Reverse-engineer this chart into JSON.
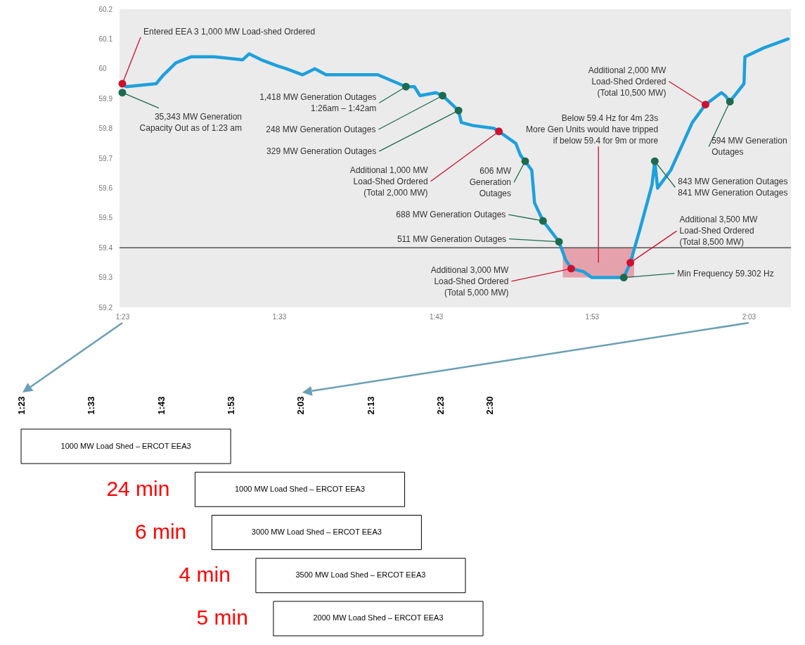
{
  "chart_data": [
    {
      "type": "line",
      "xlim": [
        1.38,
        2.095
      ],
      "ylim": [
        59.2,
        60.2
      ],
      "xticks": [
        {
          "value": 1.383,
          "label": "1:23"
        },
        {
          "value": 1.55,
          "label": "1:33"
        },
        {
          "value": 1.717,
          "label": "1:43"
        },
        {
          "value": 1.883,
          "label": "1:53"
        },
        {
          "value": 2.05,
          "label": "2:03"
        }
      ],
      "yticks": [
        59.2,
        59.3,
        59.4,
        59.5,
        59.6,
        59.7,
        59.8,
        59.9,
        60,
        60.1,
        60.2
      ],
      "grid": false,
      "series": [
        {
          "type": "line",
          "color": "#1ea0db",
          "x": [
            1.383,
            1.387,
            1.419,
            1.427,
            1.44,
            1.456,
            1.481,
            1.511,
            1.518,
            1.531,
            1.548,
            1.558,
            1.575,
            1.588,
            1.6,
            1.625,
            1.655,
            1.685,
            1.694,
            1.7,
            1.717,
            1.724,
            1.741,
            1.744,
            1.756,
            1.779,
            1.784,
            1.802,
            1.807,
            1.812,
            1.819,
            1.822,
            1.831,
            1.848,
            1.855,
            1.861,
            1.874,
            1.883,
            1.911,
            1.917,
            1.924,
            1.934,
            1.947,
            1.95,
            1.953,
            1.967,
            1.99,
            2.004,
            2.021,
            2.025,
            2.03,
            2.045,
            2.046,
            2.066,
            2.092
          ],
          "values": [
            59.95,
            59.94,
            59.95,
            59.98,
            60.02,
            60.04,
            60.04,
            60.03,
            60.05,
            60.03,
            60.01,
            60.0,
            59.98,
            60.0,
            59.98,
            59.98,
            59.98,
            59.94,
            59.94,
            59.91,
            59.92,
            59.91,
            59.86,
            59.82,
            59.81,
            59.8,
            59.79,
            59.75,
            59.71,
            59.69,
            59.66,
            59.55,
            59.49,
            59.42,
            59.36,
            59.33,
            59.32,
            59.3,
            59.3,
            59.3,
            59.35,
            59.46,
            59.61,
            59.69,
            59.6,
            59.66,
            59.82,
            59.88,
            59.92,
            59.91,
            59.89,
            59.95,
            60.04,
            60.07,
            60.1
          ]
        },
        {
          "type": "scatter",
          "color": "#cc1030",
          "x": [
            1.383,
            1.784,
            1.861,
            1.924,
            2.004
          ],
          "values": [
            59.95,
            59.79,
            59.33,
            59.35,
            59.88
          ]
        },
        {
          "type": "scatter",
          "color": "#1d6b4f",
          "x": [
            1.383,
            1.685,
            1.724,
            1.741,
            1.812,
            1.831,
            1.848,
            1.917,
            1.95,
            2.03
          ],
          "values": [
            59.92,
            59.94,
            59.91,
            59.86,
            59.69,
            59.49,
            59.42,
            59.3,
            59.69,
            59.89
          ]
        }
      ],
      "ref_lines": [
        {
          "axis": "y",
          "value": 59.4,
          "color": "#555555"
        }
      ],
      "bands": [
        {
          "axis": "x",
          "from": 1.852,
          "to": 1.928,
          "label": "Below 59.4 Hz for 4m 23s\nMore Gen Units would have tripped\nif below 59.4 for 9m or more",
          "color": "#e59aa5"
        }
      ],
      "annotations": [
        {
          "text": "Entered EEA 3 1,000 MW Load-shed Ordered",
          "x": 1.383,
          "y": 59.95
        },
        {
          "text": "35,343 MW Generation\nCapacity Out as of 1:23 am",
          "x": 1.383,
          "y": 59.92
        },
        {
          "text": "1,418 MW Generation Outages\n1:26am – 1:42am",
          "x": 1.685,
          "y": 59.94
        },
        {
          "text": "248 MW Generation Outages",
          "x": 1.724,
          "y": 59.91
        },
        {
          "text": "329 MW Generation Outages",
          "x": 1.741,
          "y": 59.86
        },
        {
          "text": "Additional 1,000 MW\nLoad-Shed Ordered\n(Total 2,000 MW)",
          "x": 1.784,
          "y": 59.79
        },
        {
          "text": "606 MW\nGeneration\nOutages",
          "x": 1.812,
          "y": 59.69
        },
        {
          "text": "688 MW Generation Outages",
          "x": 1.831,
          "y": 59.49
        },
        {
          "text": "511 MW Generation Outages",
          "x": 1.848,
          "y": 59.42
        },
        {
          "text": "Additional 3,000 MW\nLoad-Shed Ordered\n(Total 5,000 MW)",
          "x": 1.861,
          "y": 59.33
        },
        {
          "text": "Min Frequency 59.302 Hz",
          "x": 1.917,
          "y": 59.3
        },
        {
          "text": "Additional 3,500 MW\nLoad-Shed Ordered\n(Total 8,500 MW)",
          "x": 1.924,
          "y": 59.35
        },
        {
          "text": "843 MW Generation Outages\n841 MW Generation Outages",
          "x": 1.95,
          "y": 59.69
        },
        {
          "text": "Additional 2,000 MW\nLoad-Shed Ordered\n(Total 10,500 MW)",
          "x": 2.004,
          "y": 59.88
        },
        {
          "text": "594 MW Generation\nOutages",
          "x": 2.03,
          "y": 59.89
        }
      ]
    },
    {
      "type": "bar",
      "orientation": "horizontal",
      "color": "#ffffff",
      "categories": [
        "1000 MW Load Shed – ERCOT EEA3",
        "1000 MW Load Shed – ERCOT EEA3",
        "3000 MW Load Shed – ERCOT EEA3",
        "3500 MW Load Shed – ERCOT EEA3",
        "2000 MW Load Shed – ERCOT EEA3"
      ],
      "base": [
        1.383,
        1.798,
        1.838,
        1.943,
        1.985
      ],
      "values": [
        0.5,
        0.5,
        0.5,
        0.5,
        0.5
      ],
      "xlim": [
        1.383,
        2.5
      ],
      "xticks": [
        {
          "value": 1.383,
          "label": "1:23"
        },
        {
          "value": 1.55,
          "label": "1:33"
        },
        {
          "value": 1.717,
          "label": "1:43"
        },
        {
          "value": 1.883,
          "label": "1:53"
        },
        {
          "value": 2.05,
          "label": "2:03"
        },
        {
          "value": 2.217,
          "label": "2:13"
        },
        {
          "value": 2.383,
          "label": "2:23"
        },
        {
          "value": 2.5,
          "label": "2:30"
        }
      ],
      "grid": false,
      "annotations": [
        "24 min",
        "6 min",
        "4 min",
        "5 min"
      ]
    }
  ]
}
